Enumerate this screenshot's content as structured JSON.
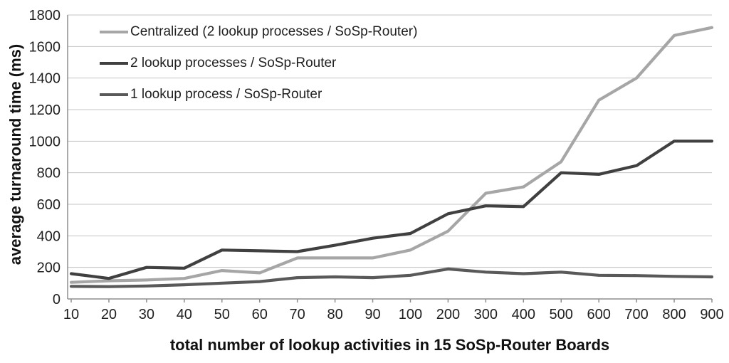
{
  "chart_data": {
    "type": "line",
    "title": "",
    "xlabel": "total number of lookup activities in 15 SoSp-Router Boards",
    "ylabel": "average turnaround time (ms)",
    "categories": [
      "10",
      "20",
      "30",
      "40",
      "50",
      "60",
      "70",
      "80",
      "90",
      "100",
      "200",
      "300",
      "400",
      "500",
      "600",
      "700",
      "800",
      "900"
    ],
    "ylim": [
      0,
      1800
    ],
    "ytick_step": 200,
    "grid": "horizontal",
    "legend_position": "top-left-inside",
    "series": [
      {
        "name": "Centralized (2 lookup processes / SoSp-Router)",
        "color": "#a6a6a6",
        "values": [
          105,
          115,
          120,
          130,
          180,
          165,
          260,
          260,
          260,
          310,
          430,
          670,
          710,
          870,
          1260,
          1400,
          1670,
          1720
        ]
      },
      {
        "name": "2 lookup processes / SoSp-Router",
        "color": "#404040",
        "values": [
          160,
          130,
          200,
          195,
          310,
          305,
          300,
          340,
          385,
          415,
          540,
          590,
          585,
          800,
          790,
          845,
          1000,
          1000
        ]
      },
      {
        "name": "1 lookup process / SoSp-Router",
        "color": "#595959",
        "values": [
          80,
          78,
          82,
          90,
          100,
          110,
          135,
          140,
          135,
          150,
          190,
          170,
          160,
          170,
          150,
          148,
          143,
          140
        ]
      }
    ],
    "colors": {
      "gridline": "#c3c3c3",
      "axis": "#8e8e8e",
      "text": "#1f1f1f",
      "background": "#ffffff"
    }
  }
}
